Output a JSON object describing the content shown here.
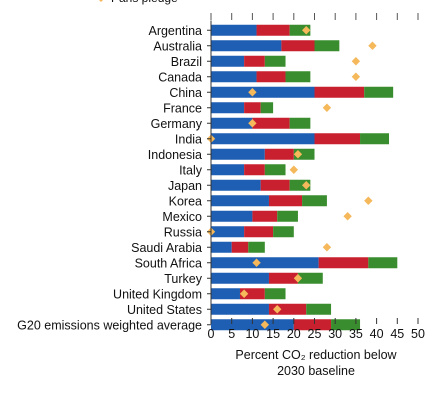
{
  "chart_data": {
    "type": "bar",
    "orientation": "horizontal",
    "stacked": true,
    "categories": [
      "Argentina",
      "Australia",
      "Brazil",
      "Canada",
      "China",
      "France",
      "Germany",
      "India",
      "Indonesia",
      "Italy",
      "Japan",
      "Korea",
      "Mexico",
      "Russia",
      "Saudi Arabia",
      "South Africa",
      "Turkey",
      "United Kingdom",
      "United States",
      "G20 emissions weighted average"
    ],
    "series": [
      {
        "name": "",
        "color": "#1f5fb3",
        "values": [
          11,
          17,
          8,
          11,
          25,
          8,
          10,
          25,
          13,
          8,
          12,
          14,
          10,
          8,
          5,
          26,
          14,
          7,
          14,
          20
        ]
      },
      {
        "name": "",
        "color": "#c8202f",
        "values": [
          8,
          8,
          5,
          7,
          12,
          4,
          9,
          11,
          7,
          5,
          7,
          8,
          6,
          7,
          4,
          12,
          7,
          6,
          9,
          9
        ]
      },
      {
        "name": "",
        "color": "#3a8d2e",
        "values": [
          5,
          6,
          5,
          6,
          7,
          3,
          5,
          7,
          5,
          5,
          5,
          6,
          5,
          5,
          4,
          7,
          6,
          5,
          6,
          7
        ]
      }
    ],
    "markers": {
      "name": "Paris pledge",
      "color": "#f5b85a",
      "values": [
        23,
        39,
        35,
        35,
        10,
        28,
        10,
        0,
        21,
        20,
        23,
        38,
        33,
        0,
        28,
        11,
        21,
        8,
        16,
        13
      ]
    },
    "legend": {
      "label": "Paris pledge",
      "placement": "top-left"
    },
    "xlabel": [
      "Percent CO₂ reduction below",
      "2030 baseline"
    ],
    "xticks": [
      0,
      5,
      10,
      15,
      20,
      25,
      30,
      35,
      40,
      45,
      50
    ],
    "xlim": [
      0,
      50
    ],
    "grid": false
  }
}
